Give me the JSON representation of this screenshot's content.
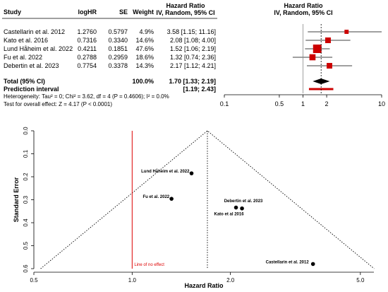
{
  "chart_data": [
    {
      "type": "forest",
      "columns": {
        "study": "Study",
        "loghr": "logHR",
        "se": "SE",
        "weight": "Weight",
        "hr_header": [
          "Hazard Ratio",
          "IV, Random, 95% CI"
        ],
        "plot_header": [
          "Hazard Ratio",
          "IV, Random, 95% CI"
        ]
      },
      "studies": [
        {
          "name": "Castellarin et al. 2012",
          "loghr": "1.2760",
          "se": "0.5797",
          "weight": "4.9%",
          "hr_text": "3.58 [1.15; 11.16]",
          "hr": 3.58,
          "lo": 1.15,
          "hi": 11.16,
          "w": 4.9
        },
        {
          "name": "Kato et al. 2016",
          "loghr": "0.7316",
          "se": "0.3340",
          "weight": "14.6%",
          "hr_text": "2.08 [1.08;  4.00]",
          "hr": 2.08,
          "lo": 1.08,
          "hi": 4.0,
          "w": 14.6
        },
        {
          "name": "Lund Håheim et al. 2022",
          "loghr": "0.4211",
          "se": "0.1851",
          "weight": "47.6%",
          "hr_text": "1.52 [1.06;  2.19]",
          "hr": 1.52,
          "lo": 1.06,
          "hi": 2.19,
          "w": 47.6
        },
        {
          "name": "Fu et al. 2022",
          "loghr": "0.2788",
          "se": "0.2959",
          "weight": "18.6%",
          "hr_text": "1.32 [0.74;  2.36]",
          "hr": 1.32,
          "lo": 0.74,
          "hi": 2.36,
          "w": 18.6
        },
        {
          "name": "Debertin et al. 2023",
          "loghr": "0.7754",
          "se": "0.3378",
          "weight": "14.3%",
          "hr_text": "2.17 [1.12;  4.21]",
          "hr": 2.17,
          "lo": 1.12,
          "hi": 4.21,
          "w": 14.3
        }
      ],
      "total": {
        "label": "Total (95% CI)",
        "weight": "100.0%",
        "hr_text": "1.70 [1.33;  2.19]",
        "hr": 1.7,
        "lo": 1.33,
        "hi": 2.19
      },
      "prediction": {
        "label": "Prediction interval",
        "text": "[1.19;  2.43]",
        "lo": 1.19,
        "hi": 2.43
      },
      "heterogeneity": "Heterogeneity: Tau² = 0; Chi² = 3.62, df = 4 (P = 0.4606); I² = 0.0%",
      "overall_effect": "Test for overall effect: Z = 4.17 (P < 0.0001)",
      "x_scale": "log",
      "xlim": [
        0.1,
        10
      ],
      "x_ticks": [
        "0.1",
        "0.5",
        "1",
        "2",
        "10"
      ],
      "x_tick_values": [
        0.1,
        0.5,
        1,
        2,
        10
      ],
      "reference_line": 1,
      "summary_line": 1.7,
      "colors": {
        "study_marker": "#cc0000",
        "diamond": "#000000",
        "prediction_bar": "#cc0000"
      }
    },
    {
      "type": "scatter",
      "subtype": "funnel",
      "xlabel": "Hazard Ratio",
      "ylabel": "Standard Error",
      "x_scale": "log",
      "xlim": [
        0.5,
        5.5
      ],
      "ylim": [
        0.6,
        0.0
      ],
      "x_ticks": [
        "0.5",
        "1.0",
        "2.0",
        "5.0"
      ],
      "x_tick_values": [
        0.5,
        1.0,
        2.0,
        5.0
      ],
      "y_ticks": [
        "0.0",
        "0.1",
        "0.2",
        "0.3",
        "0.4",
        "0.5",
        "0.6"
      ],
      "y_tick_values": [
        0.0,
        0.1,
        0.2,
        0.3,
        0.4,
        0.5,
        0.6
      ],
      "points": [
        {
          "label": "Lund Håheim et al. 2022",
          "x": 1.52,
          "y": 0.1851
        },
        {
          "label": "Fu et al. 2022",
          "x": 1.32,
          "y": 0.2959
        },
        {
          "label": "Debertin et al. 2023",
          "x": 2.17,
          "y": 0.3378
        },
        {
          "label": "Kato et al 2016",
          "x": 2.08,
          "y": 0.334
        },
        {
          "label": "Castellarin  et al. 2012",
          "x": 3.58,
          "y": 0.5797
        }
      ],
      "summary_x": 1.7,
      "null_line": {
        "x": 1.0,
        "label": "Line of no effect",
        "color": "#dd0000"
      }
    }
  ]
}
